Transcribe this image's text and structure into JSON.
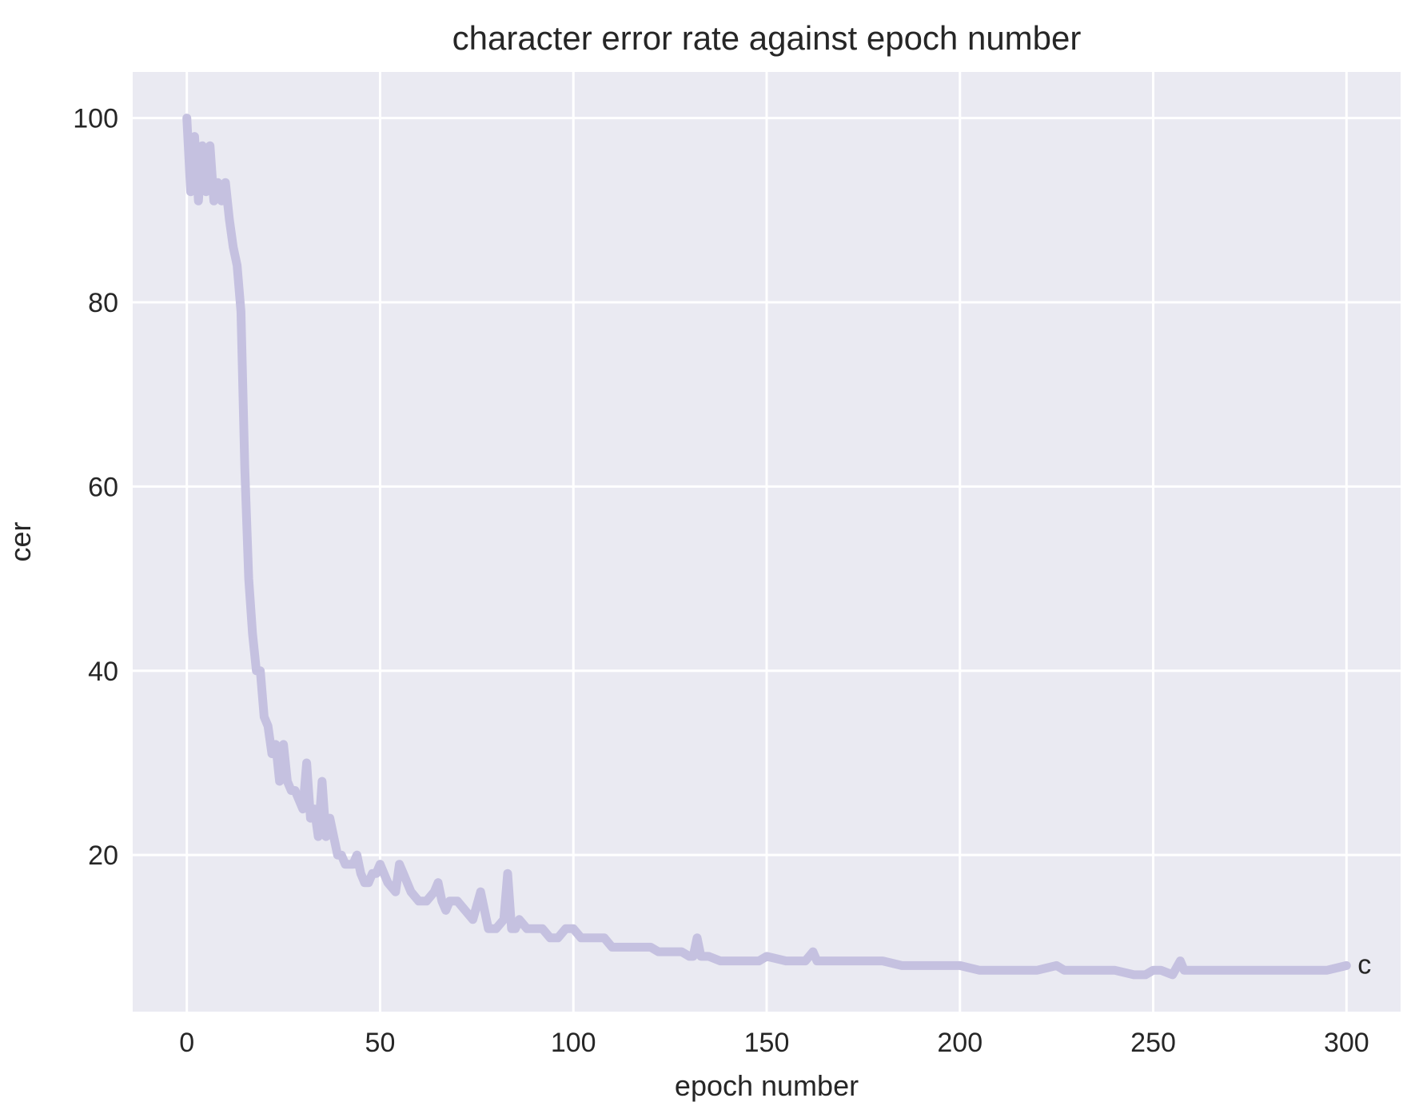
{
  "chart_data": {
    "type": "line",
    "title": "character error rate against epoch number",
    "xlabel": "epoch number",
    "ylabel": "cer",
    "xlim": [
      -14,
      314
    ],
    "ylim": [
      3,
      105
    ],
    "xticks": [
      0,
      50,
      100,
      150,
      200,
      250,
      300
    ],
    "yticks": [
      20,
      40,
      60,
      80,
      100
    ],
    "grid": true,
    "legend": "none",
    "colors": {
      "background": "#eaeaf2",
      "grid": "#ffffff",
      "line": "#c5c1e0"
    },
    "annotation": {
      "text": "c",
      "x": 300,
      "y": 8
    },
    "series": [
      {
        "x": [
          0,
          1,
          2,
          3,
          4,
          5,
          6,
          7,
          8,
          9,
          10,
          11,
          12,
          13,
          14,
          15,
          16,
          17,
          18,
          19,
          20,
          21,
          22,
          23,
          24,
          25,
          26,
          27,
          28,
          29,
          30,
          31,
          32,
          33,
          34,
          35,
          36,
          37,
          38,
          39,
          40,
          41,
          42,
          43,
          44,
          45,
          46,
          47,
          48,
          49,
          50,
          52,
          54,
          55,
          56,
          57,
          58,
          60,
          62,
          64,
          65,
          66,
          67,
          68,
          70,
          72,
          74,
          76,
          78,
          79,
          80,
          82,
          83,
          84,
          85,
          86,
          88,
          90,
          92,
          94,
          96,
          98,
          100,
          102,
          104,
          106,
          108,
          110,
          112,
          114,
          116,
          118,
          120,
          122,
          124,
          126,
          128,
          130,
          131,
          132,
          133,
          135,
          138,
          140,
          142,
          145,
          148,
          150,
          155,
          160,
          162,
          163,
          165,
          170,
          175,
          180,
          185,
          190,
          195,
          200,
          205,
          210,
          215,
          220,
          225,
          227,
          230,
          235,
          240,
          245,
          248,
          250,
          252,
          255,
          257,
          258,
          260,
          265,
          270,
          275,
          280,
          285,
          290,
          295,
          300
        ],
        "y": [
          100,
          92,
          98,
          91,
          97,
          92,
          97,
          91,
          93,
          91,
          93,
          89,
          86,
          84,
          79,
          62,
          50,
          44,
          40,
          40,
          35,
          34,
          31,
          32,
          28,
          32,
          28,
          27,
          27,
          26,
          25,
          30,
          24,
          25,
          22,
          28,
          22,
          24,
          22,
          20,
          20,
          19,
          19,
          19,
          20,
          18,
          17,
          17,
          18,
          18,
          19,
          17,
          16,
          19,
          18,
          17,
          16,
          15,
          15,
          16,
          17,
          15,
          14,
          15,
          15,
          14,
          13,
          16,
          12,
          12,
          12,
          13,
          18,
          12,
          12,
          13,
          12,
          12,
          12,
          11,
          11,
          12,
          12,
          11,
          11,
          11,
          11,
          10,
          10,
          10,
          10,
          10,
          10,
          9.5,
          9.5,
          9.5,
          9.5,
          9,
          9,
          11,
          9,
          9,
          8.5,
          8.5,
          8.5,
          8.5,
          8.5,
          9,
          8.5,
          8.5,
          9.5,
          8.5,
          8.5,
          8.5,
          8.5,
          8.5,
          8,
          8,
          8,
          8,
          7.5,
          7.5,
          7.5,
          7.5,
          8,
          7.5,
          7.5,
          7.5,
          7.5,
          7,
          7,
          7.5,
          7.5,
          7,
          8.5,
          7.5,
          7.5,
          7.5,
          7.5,
          7.5,
          7.5,
          7.5,
          7.5,
          7.5,
          8
        ]
      }
    ]
  }
}
